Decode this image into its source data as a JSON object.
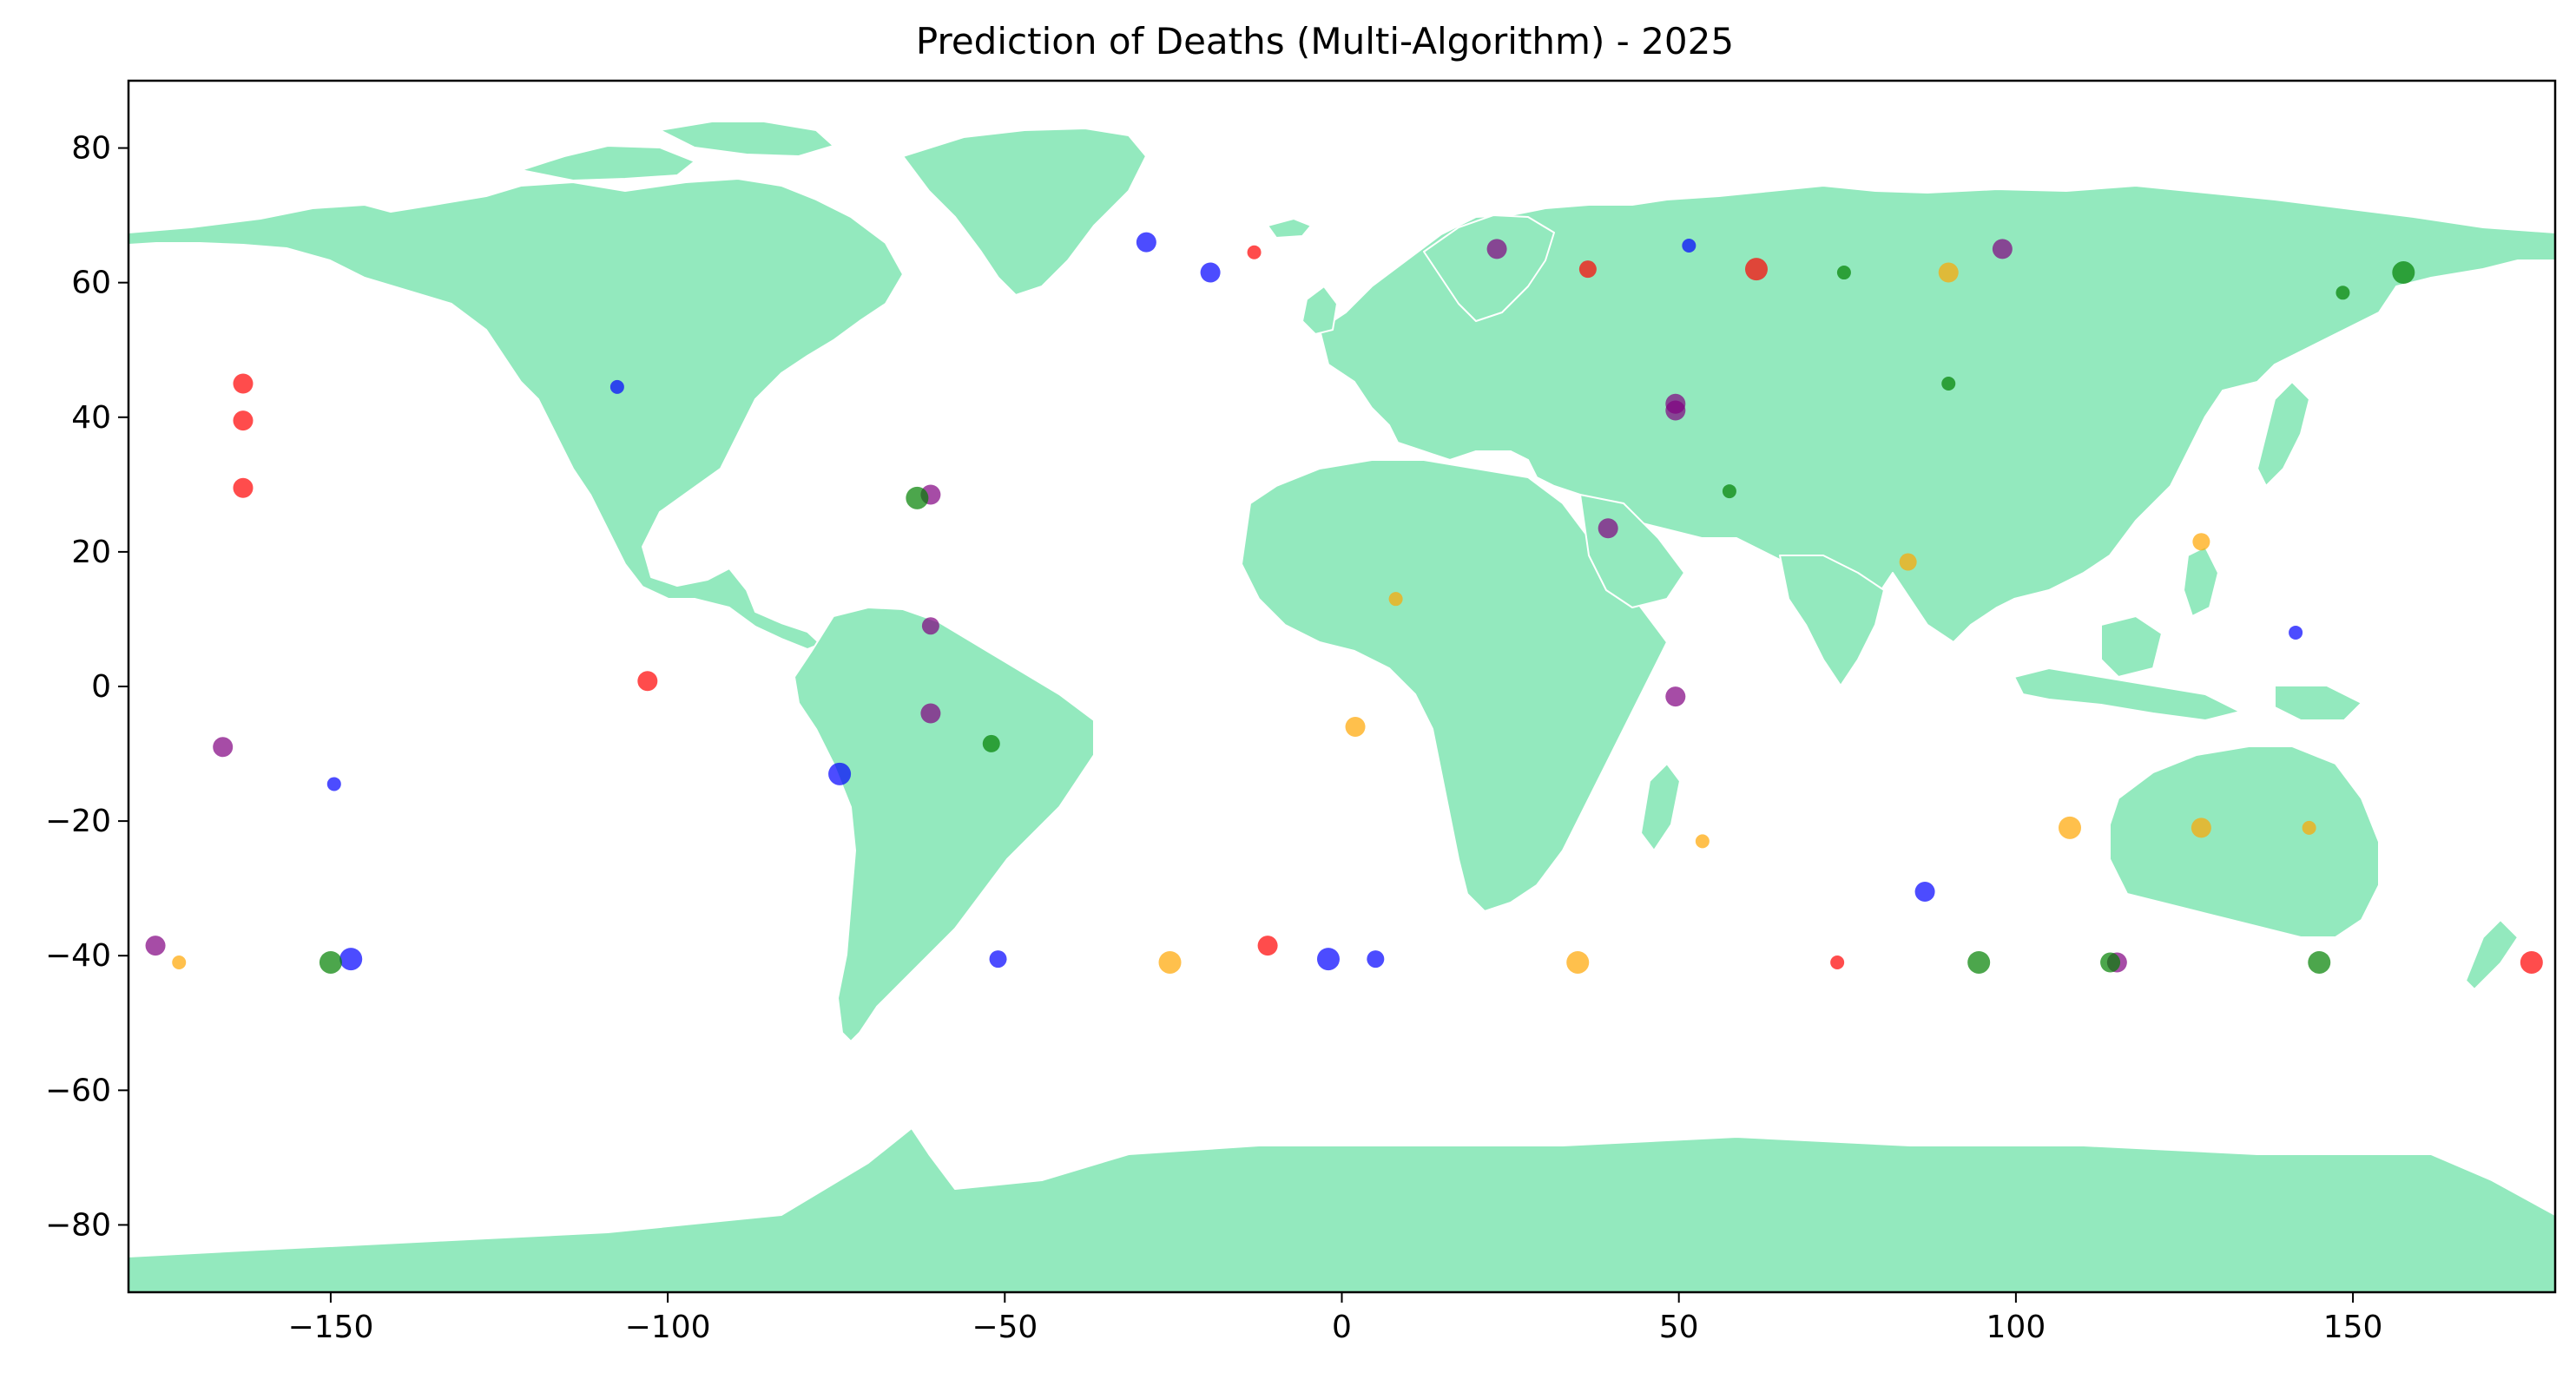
{
  "chart_data": {
    "type": "scatter",
    "title": "Prediction of Deaths (Multi-Algorithm) - 2025",
    "xlabel": "",
    "ylabel": "",
    "xlim": [
      -180,
      180
    ],
    "ylim": [
      -90,
      90
    ],
    "xticks": [
      -150,
      -100,
      -50,
      0,
      50,
      100,
      150
    ],
    "yticks": [
      -80,
      -60,
      -40,
      -20,
      0,
      20,
      40,
      60,
      80
    ],
    "xtick_labels": [
      "−150",
      "−100",
      "−50",
      "0",
      "50",
      "100",
      "150"
    ],
    "ytick_labels": [
      "−80",
      "−60",
      "−40",
      "−20",
      "0",
      "20",
      "40",
      "60",
      "80"
    ],
    "grid": false,
    "legend": "none",
    "background_map": "world land masses",
    "colors": {
      "land": "#93e9be",
      "borders": "#ffffff",
      "red": "#ff0000",
      "blue": "#0000ff",
      "purple": "#800080",
      "green": "#008000",
      "orange": "#ffa500"
    },
    "marker_alpha": 0.7,
    "series": [
      {
        "color": "red",
        "points": [
          {
            "x": -163,
            "y": 45,
            "size": 2
          },
          {
            "x": -163,
            "y": 39.5,
            "size": 2
          },
          {
            "x": -163,
            "y": 29.5,
            "size": 2
          },
          {
            "x": -103,
            "y": 0.8,
            "size": 2
          },
          {
            "x": -13,
            "y": 64.5,
            "size": 1
          },
          {
            "x": -11,
            "y": -38.5,
            "size": 2
          },
          {
            "x": 36.5,
            "y": 62,
            "size": 1.5
          },
          {
            "x": 61.5,
            "y": 62,
            "size": 3
          },
          {
            "x": 73.5,
            "y": -41,
            "size": 1
          },
          {
            "x": 176.5,
            "y": -41,
            "size": 3
          }
        ]
      },
      {
        "color": "blue",
        "points": [
          {
            "x": -107.5,
            "y": 44.5,
            "size": 1
          },
          {
            "x": -149.5,
            "y": -14.5,
            "size": 1
          },
          {
            "x": -74.5,
            "y": -13,
            "size": 3
          },
          {
            "x": -147,
            "y": -40.5,
            "size": 3
          },
          {
            "x": -51,
            "y": -40.5,
            "size": 1.5
          },
          {
            "x": -29,
            "y": 66,
            "size": 2
          },
          {
            "x": -19.5,
            "y": 61.5,
            "size": 2
          },
          {
            "x": -2,
            "y": -40.5,
            "size": 3
          },
          {
            "x": 5,
            "y": -40.5,
            "size": 1.5
          },
          {
            "x": 51.5,
            "y": 65.5,
            "size": 1
          },
          {
            "x": 86.5,
            "y": -30.5,
            "size": 2
          },
          {
            "x": 141.5,
            "y": 8,
            "size": 1
          }
        ]
      },
      {
        "color": "purple",
        "points": [
          {
            "x": -176,
            "y": -38.5,
            "size": 2
          },
          {
            "x": -166,
            "y": -9,
            "size": 2
          },
          {
            "x": -61,
            "y": 28.5,
            "size": 2
          },
          {
            "x": -61,
            "y": 9,
            "size": 1.5
          },
          {
            "x": -61,
            "y": -4,
            "size": 2
          },
          {
            "x": 23,
            "y": 65,
            "size": 2
          },
          {
            "x": 39.5,
            "y": 23.5,
            "size": 2
          },
          {
            "x": 49.5,
            "y": 42,
            "size": 2
          },
          {
            "x": 49.5,
            "y": 41,
            "size": 2
          },
          {
            "x": 49.5,
            "y": -1.5,
            "size": 2
          },
          {
            "x": 98,
            "y": 65,
            "size": 2
          },
          {
            "x": 115,
            "y": -41,
            "size": 2
          }
        ]
      },
      {
        "color": "green",
        "points": [
          {
            "x": -150,
            "y": -41,
            "size": 3
          },
          {
            "x": -63,
            "y": 28,
            "size": 3
          },
          {
            "x": -52,
            "y": -8.5,
            "size": 1.5
          },
          {
            "x": 57.5,
            "y": 29,
            "size": 1
          },
          {
            "x": 74.5,
            "y": 61.5,
            "size": 1
          },
          {
            "x": 90,
            "y": 45,
            "size": 1
          },
          {
            "x": 94.5,
            "y": -41,
            "size": 3
          },
          {
            "x": 114,
            "y": -41,
            "size": 2
          },
          {
            "x": 148.5,
            "y": 58.5,
            "size": 1
          },
          {
            "x": 145,
            "y": -41,
            "size": 3
          },
          {
            "x": 157.5,
            "y": 61.5,
            "size": 3
          }
        ]
      },
      {
        "color": "orange",
        "points": [
          {
            "x": -172.5,
            "y": -41,
            "size": 1
          },
          {
            "x": -25.5,
            "y": -41,
            "size": 3
          },
          {
            "x": 2,
            "y": -6,
            "size": 2
          },
          {
            "x": 8,
            "y": 13,
            "size": 1
          },
          {
            "x": 35,
            "y": -41,
            "size": 3
          },
          {
            "x": 53.5,
            "y": -23,
            "size": 1
          },
          {
            "x": 84,
            "y": 18.5,
            "size": 1.5
          },
          {
            "x": 90,
            "y": 61.5,
            "size": 2
          },
          {
            "x": 108,
            "y": -21,
            "size": 3
          },
          {
            "x": 127.5,
            "y": 21.5,
            "size": 1.5
          },
          {
            "x": 127.5,
            "y": -21,
            "size": 2
          },
          {
            "x": 143.5,
            "y": -21,
            "size": 1
          }
        ]
      }
    ]
  }
}
